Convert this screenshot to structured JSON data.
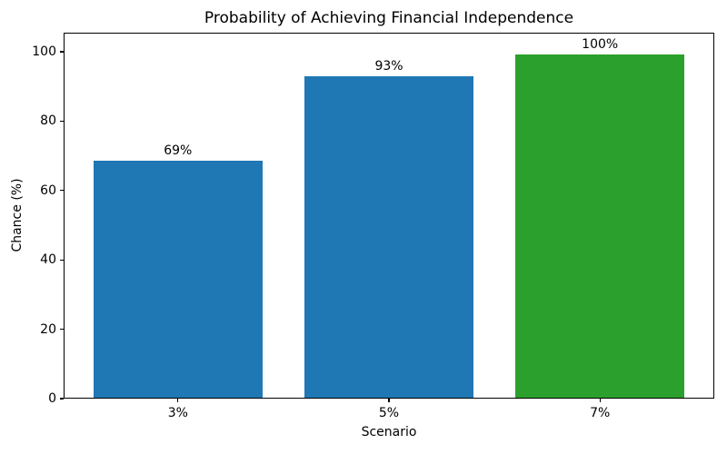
{
  "chart_data": {
    "type": "bar",
    "title": "Probability of Achieving Financial Independence",
    "xlabel": "Scenario",
    "ylabel": "Chance (%)",
    "categories": [
      "3%",
      "5%",
      "7%"
    ],
    "values": [
      69,
      93,
      100
    ],
    "bar_labels": [
      "69%",
      "93%",
      "100%"
    ],
    "bar_heights_pct": [
      68.6,
      93.2,
      99.5
    ],
    "bar_colors": [
      "#1f77b4",
      "#1f77b4",
      "#2ca02c"
    ],
    "ytick_labels": [
      "0",
      "20",
      "40",
      "60",
      "80",
      "100"
    ],
    "ytick_values": [
      0,
      20,
      40,
      60,
      80,
      100
    ],
    "ylim": [
      0,
      105.5
    ],
    "grid": false,
    "legend_position": "none",
    "axis_color": "#000000",
    "text_color": "#000000",
    "background_color": "#ffffff"
  }
}
